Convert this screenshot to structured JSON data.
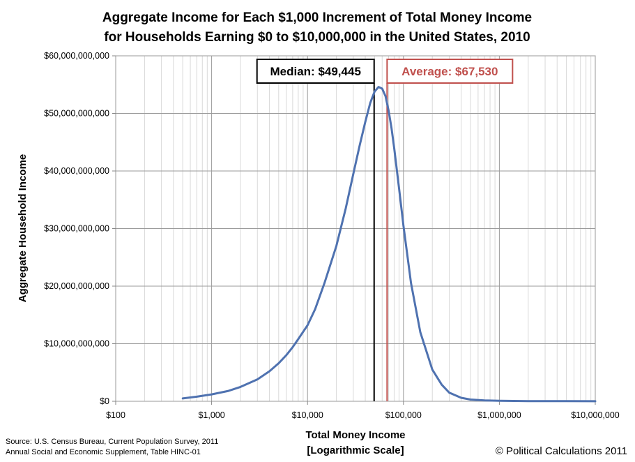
{
  "chart_data": {
    "type": "line",
    "title_lines": [
      "Aggregate Income for Each $1,000 Increment of Total Money Income",
      "for Households Earning $0 to $10,000,000 in the United States, 2010"
    ],
    "xlabel_lines": [
      "Total Money Income",
      "[Logarithmic Scale]"
    ],
    "ylabel": "Aggregate Household Income",
    "x_scale": "log",
    "xlim": [
      100,
      10000000
    ],
    "ylim": [
      0,
      60000000000
    ],
    "grid": true,
    "x_ticks": [
      {
        "value": 100,
        "label": "$100"
      },
      {
        "value": 1000,
        "label": "$1,000"
      },
      {
        "value": 10000,
        "label": "$10,000"
      },
      {
        "value": 100000,
        "label": "$100,000"
      },
      {
        "value": 1000000,
        "label": "$1,000,000"
      },
      {
        "value": 10000000,
        "label": "$10,000,000"
      }
    ],
    "y_ticks": [
      {
        "value": 0,
        "label": "$0"
      },
      {
        "value": 10000000000,
        "label": "$10,000,000,000"
      },
      {
        "value": 20000000000,
        "label": "$20,000,000,000"
      },
      {
        "value": 30000000000,
        "label": "$30,000,000,000"
      },
      {
        "value": 40000000000,
        "label": "$40,000,000,000"
      },
      {
        "value": 50000000000,
        "label": "$50,000,000,000"
      },
      {
        "value": 60000000000,
        "label": "$60,000,000,000"
      }
    ],
    "series": [
      {
        "color": "#4f72b0",
        "x": [
          500,
          700,
          1000,
          1500,
          2000,
          3000,
          4000,
          5000,
          6000,
          7000,
          8000,
          10000,
          12000,
          15000,
          20000,
          25000,
          30000,
          35000,
          40000,
          45000,
          50000,
          55000,
          60000,
          65000,
          70000,
          75000,
          80000,
          90000,
          100000,
          120000,
          150000,
          200000,
          250000,
          300000,
          400000,
          500000,
          700000,
          1000000,
          2000000,
          5000000,
          10000000
        ],
        "y": [
          500000000,
          800000000,
          1200000000,
          1800000000,
          2500000000,
          3800000000,
          5200000000,
          6600000000,
          8000000000,
          9400000000,
          10800000000,
          13200000000,
          16000000000,
          20500000000,
          27000000000,
          33500000000,
          39500000000,
          44500000000,
          48500000000,
          51800000000,
          53800000000,
          54600000000,
          54300000000,
          53000000000,
          50500000000,
          47500000000,
          44000000000,
          37000000000,
          30500000000,
          20500000000,
          12000000000,
          5500000000,
          2900000000,
          1500000000,
          600000000,
          300000000,
          150000000,
          80000000,
          40000000,
          20000000,
          10000000
        ]
      }
    ],
    "markers": [
      {
        "label": "Median: $49,445",
        "value": 49445,
        "color": "#000000"
      },
      {
        "label": "Average: $67,530",
        "value": 67530,
        "color": "#c0504d"
      }
    ],
    "annotations": {
      "source_lines": [
        "Source: U.S. Census Bureau, Current Population Survey, 2011",
        "Annual Social and Economic Supplement, Table HINC-01"
      ],
      "credit": "© Political Calculations 2011"
    }
  }
}
